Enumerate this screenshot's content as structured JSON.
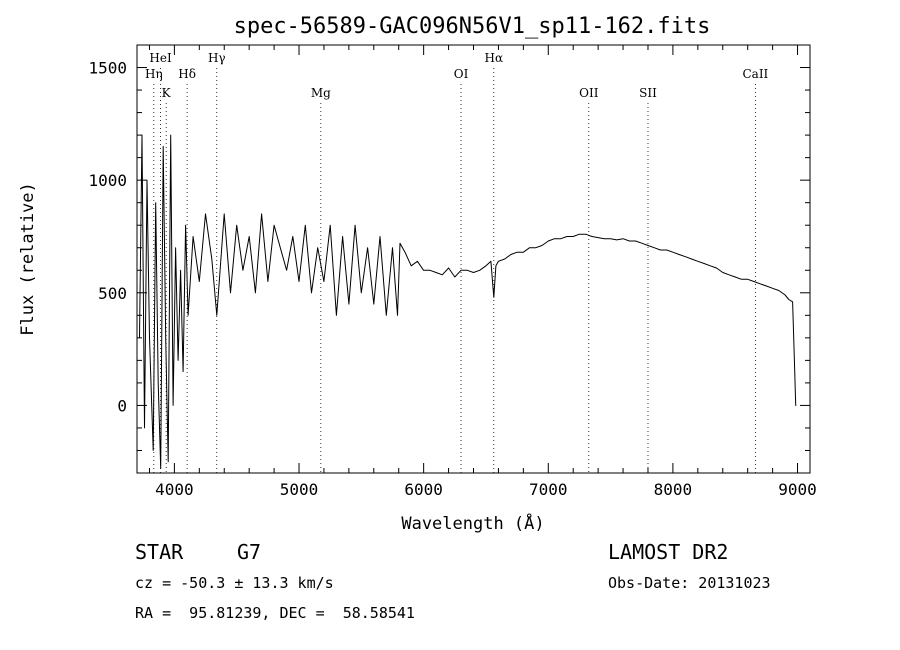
{
  "chart_data": {
    "type": "line",
    "title": "spec-56589-GAC096N56V1_sp11-162.fits",
    "xlabel": "Wavelength (Å)",
    "ylabel": "Flux (relative)",
    "xlim": [
      3700,
      9100
    ],
    "ylim": [
      -300,
      1600
    ],
    "x_ticks": [
      4000,
      5000,
      6000,
      7000,
      8000,
      9000
    ],
    "y_ticks": [
      0,
      500,
      1000,
      1500
    ],
    "grid": false,
    "series": [
      {
        "x": [
          3720,
          3740,
          3760,
          3780,
          3800,
          3830,
          3850,
          3870,
          3890,
          3910,
          3930,
          3950,
          3970,
          3990,
          4010,
          4030,
          4050,
          4070,
          4090,
          4110,
          4150,
          4200,
          4250,
          4300,
          4340,
          4400,
          4450,
          4500,
          4550,
          4600,
          4650,
          4700,
          4750,
          4800,
          4850,
          4900,
          4950,
          5000,
          5050,
          5100,
          5150,
          5200,
          5250,
          5300,
          5350,
          5400,
          5450,
          5500,
          5550,
          5600,
          5650,
          5700,
          5750,
          5790,
          5810,
          5850,
          5900,
          5950,
          6000,
          6050,
          6100,
          6150,
          6200,
          6250,
          6300,
          6350,
          6400,
          6450,
          6500,
          6540,
          6563,
          6580,
          6600,
          6650,
          6700,
          6750,
          6800,
          6850,
          6900,
          6950,
          7000,
          7050,
          7100,
          7150,
          7200,
          7250,
          7300,
          7350,
          7400,
          7450,
          7500,
          7550,
          7600,
          7650,
          7700,
          7750,
          7800,
          7850,
          7900,
          7950,
          8000,
          8050,
          8100,
          8150,
          8200,
          8250,
          8300,
          8350,
          8400,
          8450,
          8500,
          8550,
          8600,
          8650,
          8700,
          8750,
          8800,
          8850,
          8900,
          8930,
          8960,
          8975,
          8985,
          8990
        ],
        "y": [
          300,
          1200,
          -100,
          1000,
          300,
          -200,
          900,
          100,
          -280,
          1150,
          300,
          -250,
          1200,
          0,
          700,
          200,
          600,
          150,
          800,
          400,
          750,
          550,
          850,
          650,
          400,
          850,
          500,
          800,
          600,
          750,
          500,
          850,
          550,
          800,
          700,
          600,
          750,
          550,
          800,
          500,
          700,
          550,
          800,
          400,
          750,
          450,
          800,
          500,
          700,
          450,
          750,
          400,
          700,
          400,
          720,
          680,
          620,
          640,
          600,
          600,
          590,
          580,
          610,
          570,
          600,
          600,
          590,
          600,
          620,
          640,
          480,
          620,
          640,
          650,
          670,
          680,
          680,
          700,
          700,
          710,
          730,
          740,
          740,
          750,
          750,
          760,
          760,
          750,
          745,
          740,
          740,
          735,
          740,
          730,
          730,
          720,
          710,
          700,
          690,
          690,
          680,
          670,
          660,
          650,
          640,
          630,
          620,
          610,
          590,
          580,
          570,
          560,
          560,
          550,
          540,
          530,
          520,
          510,
          490,
          470,
          460,
          200,
          0,
          0
        ]
      }
    ],
    "annotations": [
      {
        "label": "Hη",
        "x": 3835,
        "row": 2
      },
      {
        "label": "HeI",
        "x": 3889,
        "row": 1
      },
      {
        "label": "K",
        "x": 3934,
        "row": 3
      },
      {
        "label": "Hδ",
        "x": 4102,
        "row": 2
      },
      {
        "label": "Hγ",
        "x": 4340,
        "row": 1
      },
      {
        "label": "Mg",
        "x": 5175,
        "row": 3
      },
      {
        "label": "OI",
        "x": 6300,
        "row": 2
      },
      {
        "label": "Hα",
        "x": 6563,
        "row": 1
      },
      {
        "label": "OII",
        "x": 7325,
        "row": 3
      },
      {
        "label": "SII",
        "x": 7800,
        "row": 3
      },
      {
        "label": "CaII",
        "x": 8662,
        "row": 2
      }
    ]
  },
  "info": {
    "object_class": "STAR",
    "subclass": "G7",
    "survey": "LAMOST DR2",
    "redshift": "cz = -50.3 ± 13.3 km/s",
    "obs_date": "Obs-Date: 20131023",
    "coords": "RA =  95.81239, DEC =  58.58541"
  }
}
